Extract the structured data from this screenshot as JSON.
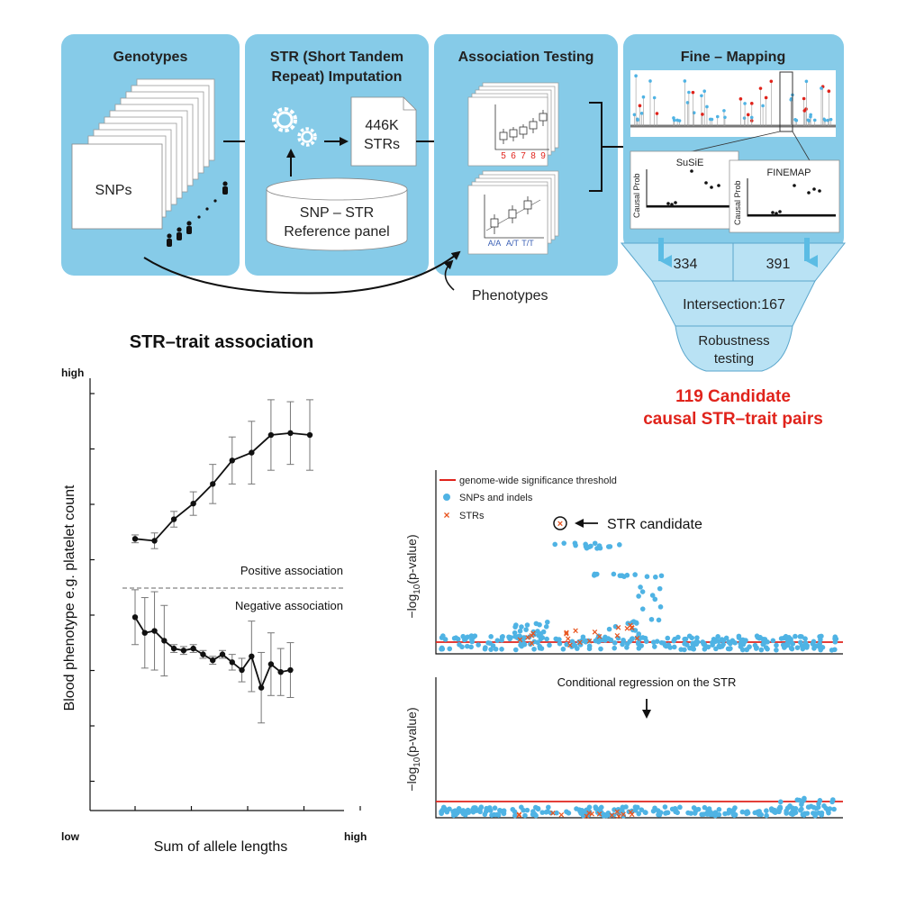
{
  "colors": {
    "panel_bg": "#86cbe8",
    "panel_light": "#b9e2f4",
    "cyan_arrow": "#5bbce4",
    "red": "#e0231b",
    "snp_blue": "#4fb3e4",
    "str_orange": "#e8541e",
    "tick_red": "#e0231b",
    "tick_blue": "#3a5fb5"
  },
  "workflow": {
    "panels": {
      "genotypes": {
        "title": "Genotypes",
        "card_label": "SNPs"
      },
      "imputation": {
        "title_line1": "STR (Short Tandem",
        "title_line2": "Repeat) Imputation",
        "doc_line1": "446K",
        "doc_line2": "STRs",
        "reference_line1": "SNP – STR",
        "reference_line2": "Reference panel"
      },
      "association": {
        "title": "Association Testing",
        "str_ticks": [
          "5",
          "6",
          "7",
          "8",
          "9"
        ],
        "snp_ticks": [
          "A/A",
          "A/T",
          "T/T"
        ]
      },
      "finemapping": {
        "title": "Fine – Mapping",
        "susie_label": "SuSiE",
        "finemap_label": "FINEMAP",
        "axis_label": "Causal Prob"
      }
    },
    "phenotypes_label": "Phenotypes",
    "funnel": {
      "susie_count": "334",
      "finemap_count": "391",
      "intersection": "Intersection:167",
      "robustness_line1": "Robustness",
      "robustness_line2": "testing"
    },
    "result_line1": "119 Candidate",
    "result_line2": "causal STR–trait pairs"
  },
  "association_chart": {
    "title": "STR–trait association",
    "y_high": "high",
    "x_low": "low",
    "x_high": "high",
    "ylabel": "Blood phenotype e.g. platelet count",
    "xlabel": "Sum of allele lengths",
    "positive_label": "Positive association",
    "negative_label": "Negative association"
  },
  "manhattan": {
    "legend_threshold": "genome-wide significance threshold",
    "legend_snps": "SNPs and indels",
    "legend_strs": "STRs",
    "str_candidate_label": "STR candidate",
    "ylabel_prefix": "−log",
    "ylabel_sub": "10",
    "ylabel_suffix": "(p-value)",
    "conditional_label": "Conditional regression on the STR"
  },
  "chart_data": {
    "type": "line",
    "title": "STR–trait association",
    "xlabel": "Sum of allele lengths",
    "ylabel": "Blood phenotype e.g. platelet count",
    "ylim": [
      0,
      10
    ],
    "series": [
      {
        "name": "Positive association",
        "x": [
          1,
          2,
          3,
          4,
          5,
          6,
          7,
          8,
          9,
          10
        ],
        "values": [
          6.2,
          6.15,
          6.7,
          7.1,
          7.6,
          8.2,
          8.4,
          8.85,
          8.9,
          8.85
        ],
        "err": [
          0.1,
          0.2,
          0.2,
          0.3,
          0.5,
          0.6,
          0.8,
          0.9,
          0.8,
          0.9
        ]
      },
      {
        "name": "Negative association",
        "x": [
          1,
          1.5,
          2,
          2.5,
          3,
          3.5,
          4,
          4.5,
          5,
          5.5,
          6,
          6.5,
          7,
          7.5,
          8,
          8.5,
          9
        ],
        "values": [
          4.2,
          3.8,
          3.85,
          3.6,
          3.4,
          3.35,
          3.4,
          3.25,
          3.1,
          3.25,
          3.05,
          2.85,
          3.2,
          2.4,
          3.0,
          2.8,
          2.85
        ],
        "err": [
          0.7,
          0.9,
          1.0,
          0.9,
          0.1,
          0.1,
          0.1,
          0.1,
          0.1,
          0.1,
          0.2,
          0.3,
          0.9,
          0.9,
          0.8,
          0.6,
          0.7
        ]
      }
    ]
  }
}
